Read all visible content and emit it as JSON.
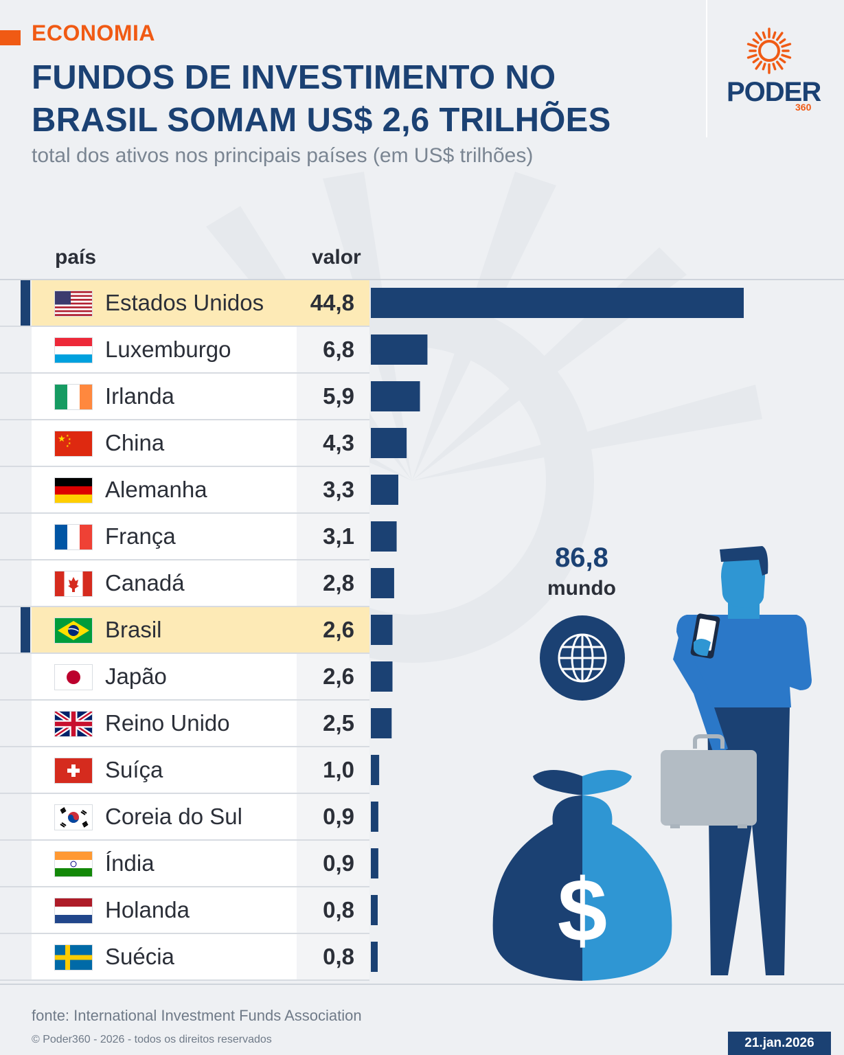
{
  "header": {
    "tag": "ECONOMIA",
    "title": "FUNDOS DE INVESTIMENTO NO BRASIL SOMAM US$ 2,6 TRILHÕES",
    "subtitle": "total dos ativos nos principais países (em US$ trilhões)"
  },
  "logo": {
    "word": "PODER",
    "number": "360"
  },
  "columns": {
    "country": "país",
    "value": "valor"
  },
  "world": {
    "value": "86,8",
    "label": "mundo"
  },
  "footer": {
    "source": "fonte: International Investment Funds Association",
    "copyright": "© Poder360 - 2026 - todos os direitos reservados",
    "date": "21.jan.2026"
  },
  "colors": {
    "accent": "#f05a14",
    "navy": "#1b4173",
    "highlight": "#fdeab6",
    "bag_light": "#2f96d3"
  },
  "chart_data": {
    "type": "bar",
    "orientation": "horizontal",
    "title": "FUNDOS DE INVESTIMENTO NO BRASIL SOMAM US$ 2,6 TRILHÕES",
    "subtitle": "total dos ativos nos principais países (em US$ trilhões)",
    "xlim": [
      0,
      44.8
    ],
    "highlighted": [
      "Estados Unidos",
      "Brasil"
    ],
    "categories": [
      "Estados Unidos",
      "Luxemburgo",
      "Irlanda",
      "China",
      "Alemanha",
      "França",
      "Canadá",
      "Brasil",
      "Japão",
      "Reino Unido",
      "Suíça",
      "Coreia do Sul",
      "Índia",
      "Holanda",
      "Suécia"
    ],
    "values": [
      44.8,
      6.8,
      5.9,
      4.3,
      3.3,
      3.1,
      2.8,
      2.6,
      2.6,
      2.5,
      1.0,
      0.9,
      0.9,
      0.8,
      0.8
    ],
    "value_labels": [
      "44,8",
      "6,8",
      "5,9",
      "4,3",
      "3,3",
      "3,1",
      "2,8",
      "2,6",
      "2,6",
      "2,5",
      "1,0",
      "0,9",
      "0,9",
      "0,8",
      "0,8"
    ],
    "flags": [
      "us",
      "lu",
      "ie",
      "cn",
      "de",
      "fr",
      "ca",
      "br",
      "jp",
      "gb",
      "ch",
      "kr",
      "in",
      "nl",
      "se"
    ]
  }
}
